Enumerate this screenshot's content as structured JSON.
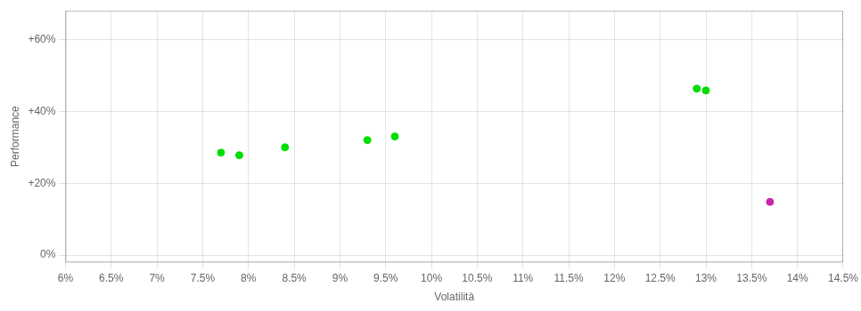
{
  "chart_data": {
    "type": "scatter",
    "xlabel": "Volatilità",
    "ylabel": "Performance",
    "xlim": [
      0.06,
      0.145
    ],
    "ylim": [
      -0.02,
      0.68
    ],
    "xticks": [
      {
        "value": 0.06,
        "label": "6%"
      },
      {
        "value": 0.065,
        "label": "6.5%"
      },
      {
        "value": 0.07,
        "label": "7%"
      },
      {
        "value": 0.075,
        "label": "7.5%"
      },
      {
        "value": 0.08,
        "label": "8%"
      },
      {
        "value": 0.085,
        "label": "8.5%"
      },
      {
        "value": 0.09,
        "label": "9%"
      },
      {
        "value": 0.095,
        "label": "9.5%"
      },
      {
        "value": 0.1,
        "label": "10%"
      },
      {
        "value": 0.105,
        "label": "10.5%"
      },
      {
        "value": 0.11,
        "label": "11%"
      },
      {
        "value": 0.115,
        "label": "11.5%"
      },
      {
        "value": 0.12,
        "label": "12%"
      },
      {
        "value": 0.125,
        "label": "12.5%"
      },
      {
        "value": 0.13,
        "label": "13%"
      },
      {
        "value": 0.135,
        "label": "13.5%"
      },
      {
        "value": 0.14,
        "label": "14%"
      },
      {
        "value": 0.145,
        "label": "14.5%"
      }
    ],
    "yticks": [
      {
        "value": 0.0,
        "label": "0%"
      },
      {
        "value": 0.2,
        "label": "+20%"
      },
      {
        "value": 0.4,
        "label": "+40%"
      },
      {
        "value": 0.6,
        "label": "+60%"
      }
    ],
    "grid": true,
    "series": [
      {
        "color": "#00dd00",
        "x": [
          0.077,
          0.079,
          0.084,
          0.093,
          0.096,
          0.129,
          0.13
        ],
        "values": [
          0.285,
          0.278,
          0.3,
          0.32,
          0.33,
          0.463,
          0.458
        ]
      },
      {
        "color": "#cc22aa",
        "x": [
          0.137
        ],
        "values": [
          0.148
        ]
      }
    ]
  }
}
